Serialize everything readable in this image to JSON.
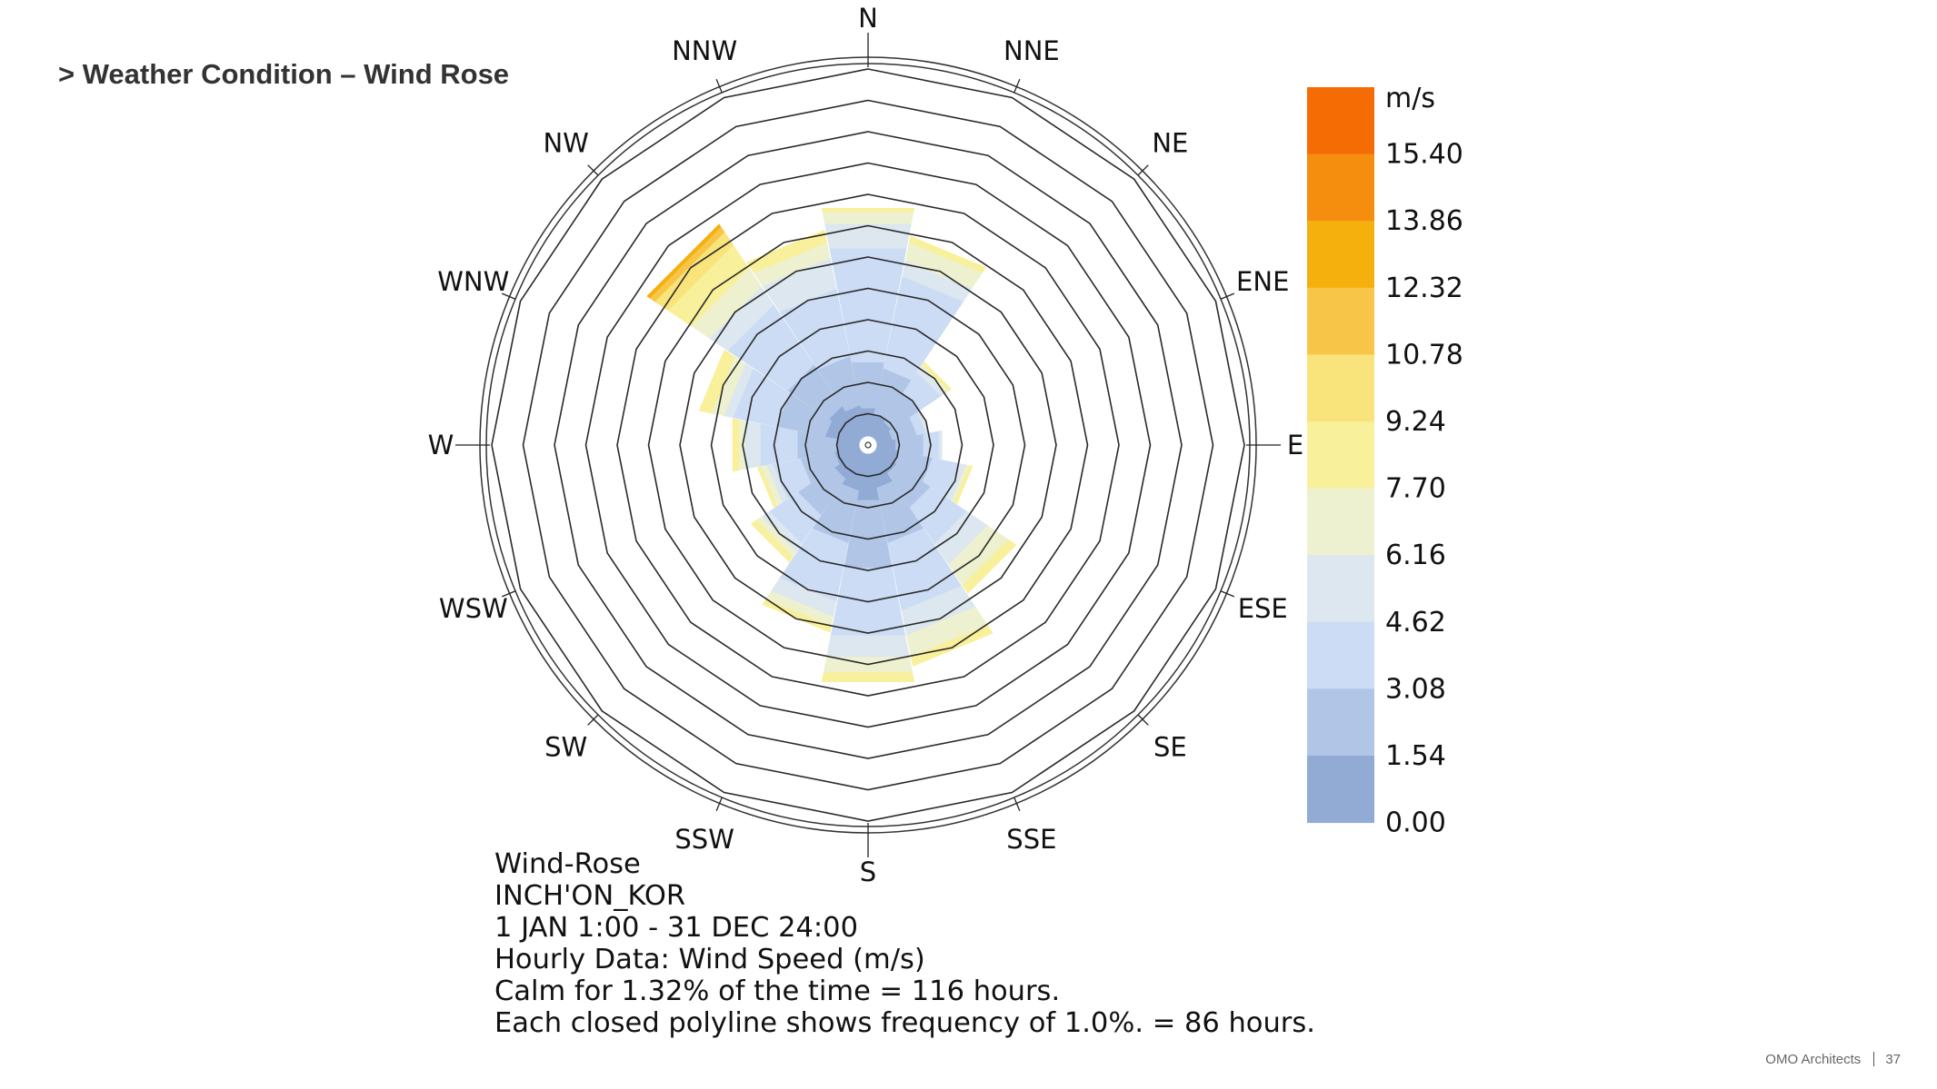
{
  "slide": {
    "title": "> Weather Condition – Wind Rose",
    "footer_company": "OMO Architects",
    "page_number": "37"
  },
  "chart_data": {
    "type": "wind-rose",
    "directions": [
      "N",
      "NNE",
      "NE",
      "ENE",
      "E",
      "ESE",
      "SE",
      "SSE",
      "S",
      "SSW",
      "SW",
      "WSW",
      "W",
      "WNW",
      "NW",
      "NNW"
    ],
    "frequency_ring_step_percent": 1.0,
    "frequency_rings_percent": [
      1,
      2,
      3,
      4,
      5,
      6,
      7,
      8,
      9,
      10,
      11,
      12
    ],
    "speed_bins_m_s": [
      0.0,
      1.54,
      3.08,
      4.62,
      6.16,
      7.7,
      9.24,
      10.78,
      12.32,
      13.86,
      15.4
    ],
    "bin_colors": [
      "#91abd5",
      "#b1c6e7",
      "#cbdcf4",
      "#dde7ef",
      "#eef1cf",
      "#f8f09a",
      "#f9e37b",
      "#f7c548",
      "#f6b00e",
      "#f58e0e",
      "#f56b04"
    ],
    "series": [
      {
        "direction": "N",
        "cumulative_percent": [
          1.2,
          2.7,
          6.4,
          7.2,
          7.6,
          7.7
        ]
      },
      {
        "direction": "NNE",
        "cumulative_percent": [
          1.0,
          2.5,
          5.5,
          6.0,
          6.6,
          6.8
        ]
      },
      {
        "direction": "NE",
        "cumulative_percent": [
          0.9,
          2.0,
          2.8,
          3.0,
          3.1,
          3.2
        ]
      },
      {
        "direction": "ENE",
        "cumulative_percent": [
          0.8,
          1.6,
          1.9,
          2.0,
          2.0
        ]
      },
      {
        "direction": "E",
        "cumulative_percent": [
          0.9,
          1.8,
          2.3,
          2.4
        ]
      },
      {
        "direction": "ESE",
        "cumulative_percent": [
          1.0,
          2.1,
          3.0,
          3.2,
          3.3,
          3.4
        ]
      },
      {
        "direction": "SE",
        "cumulative_percent": [
          1.1,
          2.4,
          3.8,
          4.6,
          5.4,
          5.7
        ]
      },
      {
        "direction": "SSE",
        "cumulative_percent": [
          1.4,
          3.2,
          5.4,
          6.2,
          6.9,
          7.2
        ]
      },
      {
        "direction": "S",
        "cumulative_percent": [
          1.8,
          4.0,
          6.2,
          6.9,
          7.4,
          7.7
        ]
      },
      {
        "direction": "SSW",
        "cumulative_percent": [
          1.5,
          3.2,
          5.1,
          5.6,
          5.9,
          6.1
        ]
      },
      {
        "direction": "SW",
        "cumulative_percent": [
          1.3,
          2.7,
          3.8,
          4.1,
          4.3,
          4.5
        ]
      },
      {
        "direction": "WSW",
        "cumulative_percent": [
          1.1,
          2.2,
          3.1,
          3.3,
          3.5,
          3.6
        ]
      },
      {
        "direction": "W",
        "cumulative_percent": [
          1.0,
          2.3,
          3.5,
          4.0,
          4.2,
          4.4
        ]
      },
      {
        "direction": "WNW",
        "cumulative_percent": [
          1.4,
          3.0,
          4.4,
          4.7,
          5.1,
          5.5
        ]
      },
      {
        "direction": "NW",
        "cumulative_percent": [
          1.5,
          3.1,
          5.4,
          6.1,
          6.8,
          7.7,
          8.2,
          8.4,
          8.5
        ]
      },
      {
        "direction": "NNW",
        "cumulative_percent": [
          1.3,
          2.9,
          5.1,
          6.1,
          6.6,
          7.0
        ]
      }
    ],
    "legend": {
      "unit": "m/s",
      "tick_labels": [
        "15.40",
        "13.86",
        "12.32",
        "10.78",
        "9.24",
        "7.70",
        "6.16",
        "4.62",
        "3.08",
        "1.54",
        "0.00"
      ]
    },
    "info_lines": [
      "Wind-Rose",
      "INCH'ON_KOR",
      "1 JAN 1:00 - 31 DEC 24:00",
      "Hourly Data: Wind Speed (m/s)",
      "Calm for 1.32% of the time = 116 hours.",
      "Each closed polyline shows frequency of 1.0%. = 86 hours."
    ]
  }
}
